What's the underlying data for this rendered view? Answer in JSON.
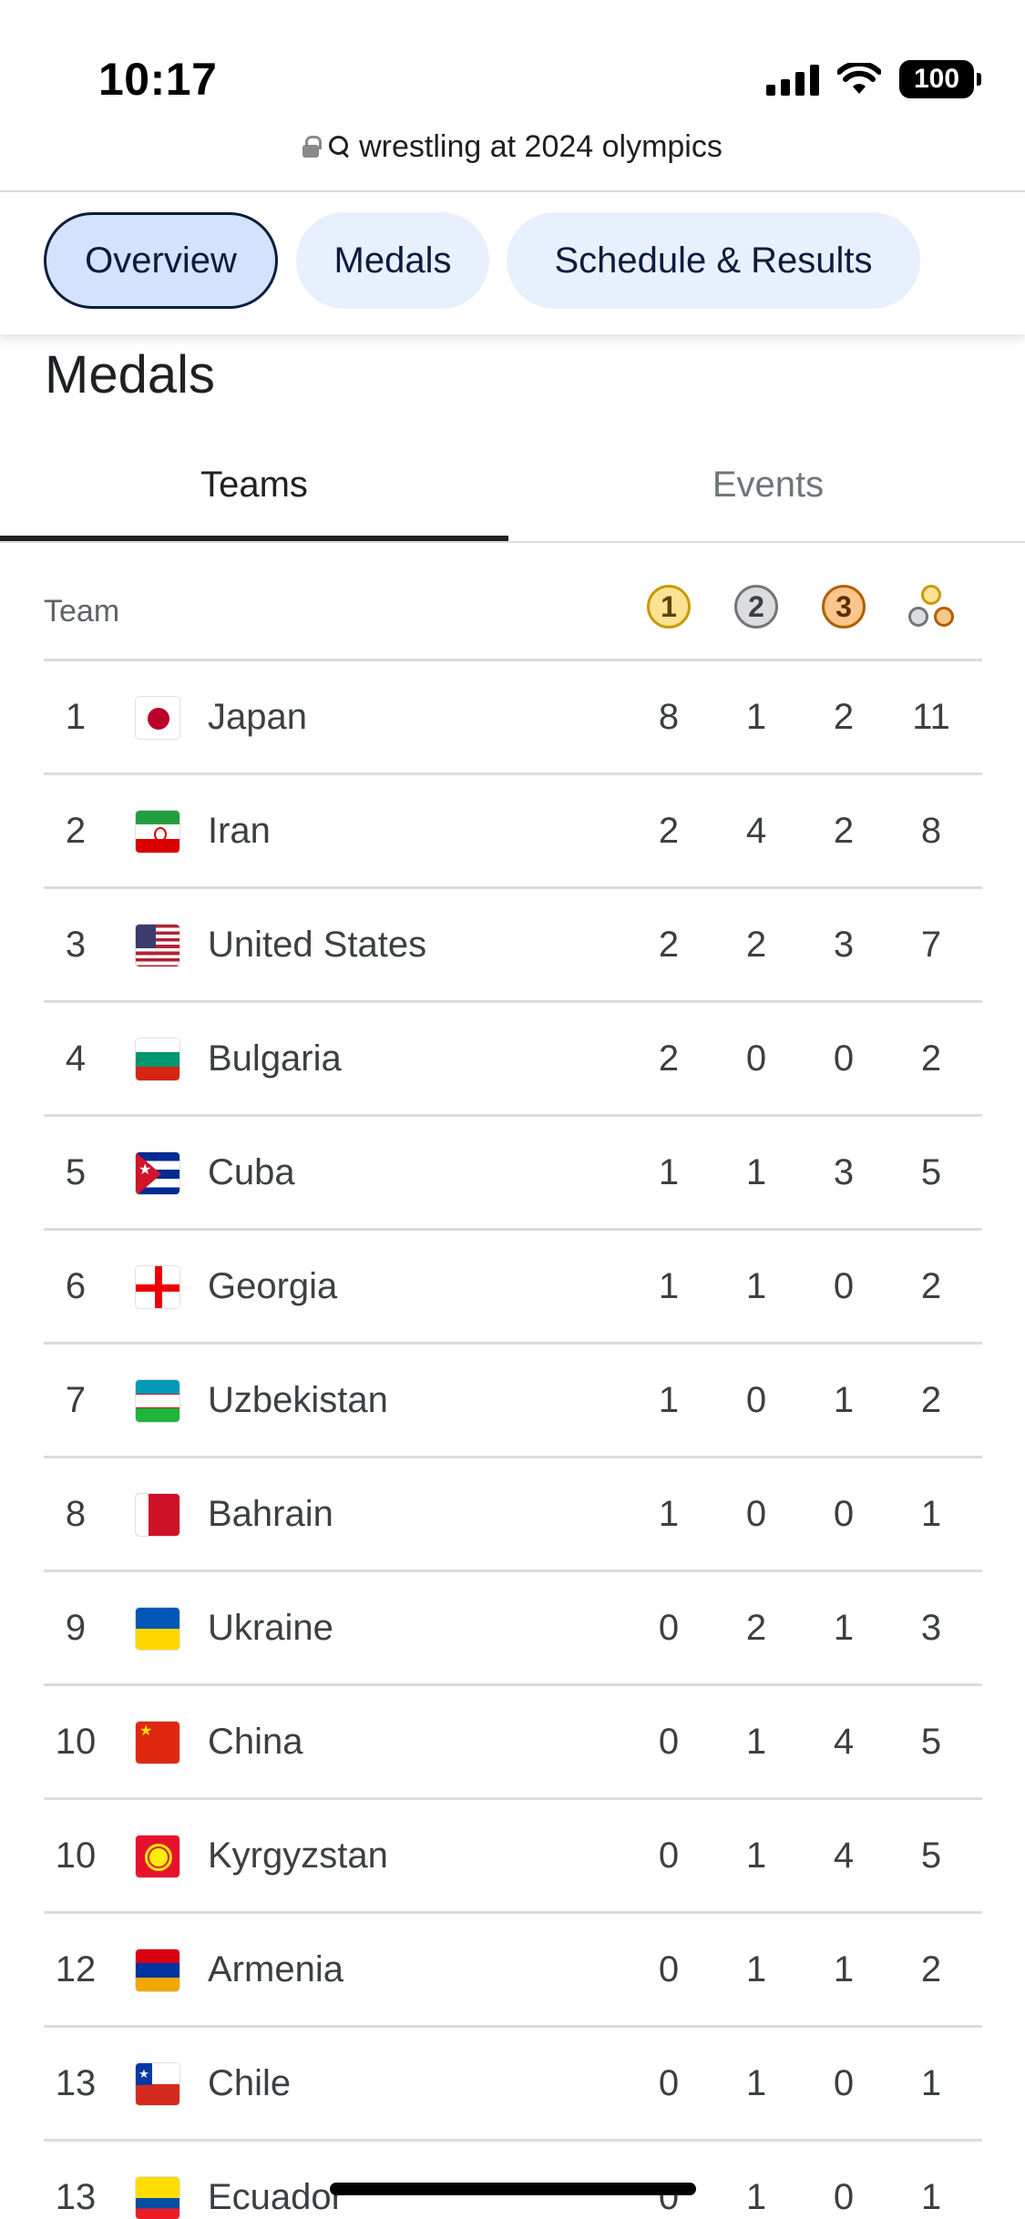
{
  "status_bar": {
    "time": "10:17",
    "battery": "100"
  },
  "browser": {
    "search_query": "wrestling at 2024 olympics"
  },
  "chips": [
    {
      "label": "Overview",
      "active": true
    },
    {
      "label": "Medals",
      "active": false
    },
    {
      "label": "Schedule & Results",
      "active": false
    }
  ],
  "section": {
    "title": "Medals"
  },
  "tabs": [
    {
      "label": "Teams",
      "active": true
    },
    {
      "label": "Events",
      "active": false
    }
  ],
  "table": {
    "header": {
      "team": "Team",
      "gold": "1",
      "silver": "2",
      "bronze": "3"
    },
    "rows": [
      {
        "rank": "1",
        "team": "Japan",
        "flag": "japan-flag-icon",
        "gold": "8",
        "silver": "1",
        "bronze": "2",
        "total": "11"
      },
      {
        "rank": "2",
        "team": "Iran",
        "flag": "iran-flag-icon",
        "gold": "2",
        "silver": "4",
        "bronze": "2",
        "total": "8"
      },
      {
        "rank": "3",
        "team": "United States",
        "flag": "usa-flag-icon",
        "gold": "2",
        "silver": "2",
        "bronze": "3",
        "total": "7"
      },
      {
        "rank": "4",
        "team": "Bulgaria",
        "flag": "bulgaria-flag-icon",
        "gold": "2",
        "silver": "0",
        "bronze": "0",
        "total": "2"
      },
      {
        "rank": "5",
        "team": "Cuba",
        "flag": "cuba-flag-icon",
        "gold": "1",
        "silver": "1",
        "bronze": "3",
        "total": "5"
      },
      {
        "rank": "6",
        "team": "Georgia",
        "flag": "georgia-flag-icon",
        "gold": "1",
        "silver": "1",
        "bronze": "0",
        "total": "2"
      },
      {
        "rank": "7",
        "team": "Uzbekistan",
        "flag": "uzbekistan-flag-icon",
        "gold": "1",
        "silver": "0",
        "bronze": "1",
        "total": "2"
      },
      {
        "rank": "8",
        "team": "Bahrain",
        "flag": "bahrain-flag-icon",
        "gold": "1",
        "silver": "0",
        "bronze": "0",
        "total": "1"
      },
      {
        "rank": "9",
        "team": "Ukraine",
        "flag": "ukraine-flag-icon",
        "gold": "0",
        "silver": "2",
        "bronze": "1",
        "total": "3"
      },
      {
        "rank": "10",
        "team": "China",
        "flag": "china-flag-icon",
        "gold": "0",
        "silver": "1",
        "bronze": "4",
        "total": "5"
      },
      {
        "rank": "10",
        "team": "Kyrgyzstan",
        "flag": "kyrgyzstan-flag-icon",
        "gold": "0",
        "silver": "1",
        "bronze": "4",
        "total": "5"
      },
      {
        "rank": "12",
        "team": "Armenia",
        "flag": "armenia-flag-icon",
        "gold": "0",
        "silver": "1",
        "bronze": "1",
        "total": "2"
      },
      {
        "rank": "13",
        "team": "Chile",
        "flag": "chile-flag-icon",
        "gold": "0",
        "silver": "1",
        "bronze": "0",
        "total": "1"
      },
      {
        "rank": "13",
        "team": "Ecuador",
        "flag": "ecuador-flag-icon",
        "gold": "0",
        "silver": "1",
        "bronze": "0",
        "total": "1"
      }
    ]
  },
  "colors": {
    "chip_background": "#e8f0fe",
    "chip_active_background": "#d3e3fd",
    "chip_text": "#0b1c3d",
    "gold": "#fde293",
    "silver": "#dadce0",
    "bronze": "#fbc58b",
    "divider": "#dadce0"
  }
}
